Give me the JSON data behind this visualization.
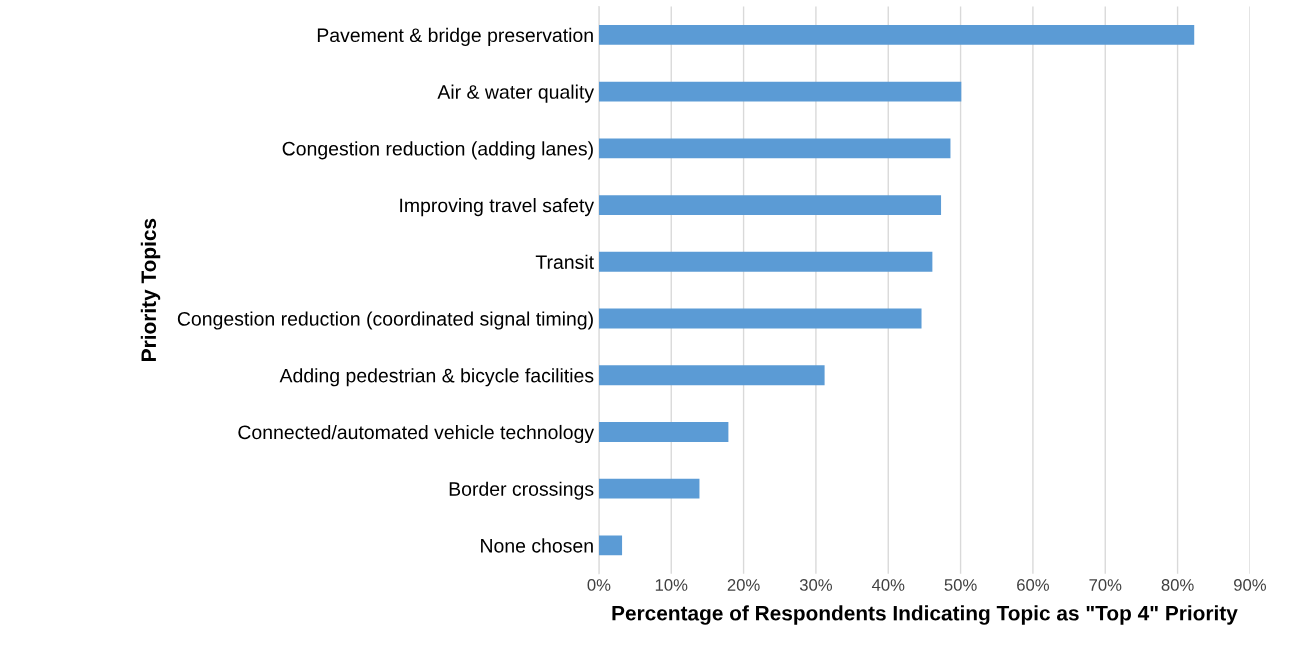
{
  "chart_data": {
    "type": "bar",
    "orientation": "horizontal",
    "categories": [
      "Pavement & bridge preservation",
      "Air & water quality",
      "Congestion reduction (adding lanes)",
      "Improving travel safety",
      "Transit",
      "Congestion reduction (coordinated signal timing)",
      "Adding pedestrian & bicycle facilities",
      "Connected/automated vehicle technology",
      "Border crossings",
      "None chosen"
    ],
    "values": [
      82.3,
      50.1,
      48.6,
      47.3,
      46.1,
      44.6,
      31.2,
      17.9,
      13.9,
      3.2
    ],
    "color": "#5b9bd5",
    "xlabel": "Percentage of Respondents Indicating Topic as \"Top 4\" Priority",
    "ylabel": "Priority Topics",
    "xlim": [
      0,
      90
    ],
    "xticks": [
      {
        "value": 0,
        "label": "0%"
      },
      {
        "value": 10,
        "label": "10%"
      },
      {
        "value": 20,
        "label": "20%"
      },
      {
        "value": 30,
        "label": "30%"
      },
      {
        "value": 40,
        "label": "40%"
      },
      {
        "value": 50,
        "label": "50%"
      },
      {
        "value": 60,
        "label": "60%"
      },
      {
        "value": 70,
        "label": "70%"
      },
      {
        "value": 80,
        "label": "80%"
      },
      {
        "value": 90,
        "label": "90%"
      }
    ],
    "grid": "x"
  }
}
